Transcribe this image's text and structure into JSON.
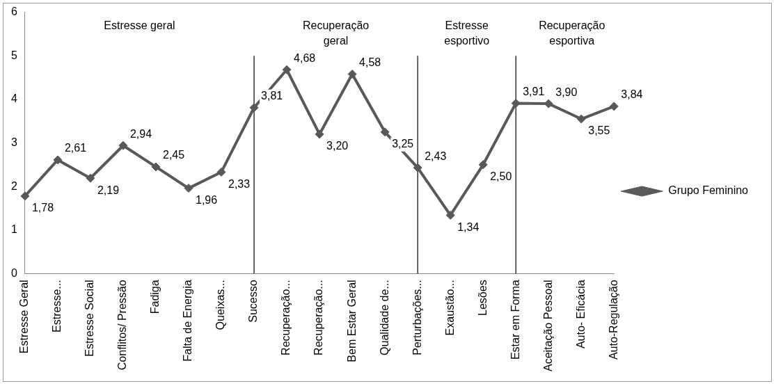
{
  "chart_data": {
    "type": "line",
    "categories": [
      "Estresse Geral",
      "Estresse...",
      "Estresse Social",
      "Conflitos/ Pressão",
      "Fadiga",
      "Falta de Energia",
      "Queixas...",
      "Sucesso",
      "Recuperação...",
      "Recuperação...",
      "Bem Estar Geral",
      "Qualidade de...",
      "Perturbações...",
      "Exaustão...",
      "Lesões",
      "Estar em Forma",
      "Aceitação Pessoal",
      "Auto- Eficácia",
      "Auto-Regulação"
    ],
    "series": [
      {
        "name": "Grupo Feminino",
        "color": "#595959",
        "values": [
          1.78,
          2.61,
          2.19,
          2.94,
          2.45,
          1.96,
          2.33,
          3.81,
          4.68,
          3.2,
          4.58,
          3.25,
          2.43,
          1.34,
          2.5,
          3.91,
          3.9,
          3.55,
          3.84
        ],
        "value_labels": [
          "1,78",
          "2,61",
          "2,19",
          "2,94",
          "2,45",
          "1,96",
          "2,33",
          "3,81",
          "4,68",
          "3,20",
          "4,58",
          "3,25",
          "2,43",
          "1,34",
          "2,50",
          "3,91",
          "3,90",
          "3,55",
          "3,84"
        ]
      }
    ],
    "ylim": [
      0,
      6
    ],
    "yticks": [
      0,
      1,
      2,
      3,
      4,
      5,
      6
    ],
    "grid": false,
    "legend": "right",
    "marker": "diamond",
    "line_style": "solid",
    "ref_lines": [
      {
        "axis": "x",
        "value": "Sucesso",
        "color": "#000000"
      },
      {
        "axis": "x",
        "value": "Perturbações...",
        "color": "#000000"
      },
      {
        "axis": "x",
        "value": "Estar em Forma",
        "color": "#000000"
      }
    ],
    "annotations": [
      "Estresse geral",
      "Recuperação\ngeral",
      "Estresse\nesportivo",
      "Recuperação\nesportiva"
    ]
  }
}
